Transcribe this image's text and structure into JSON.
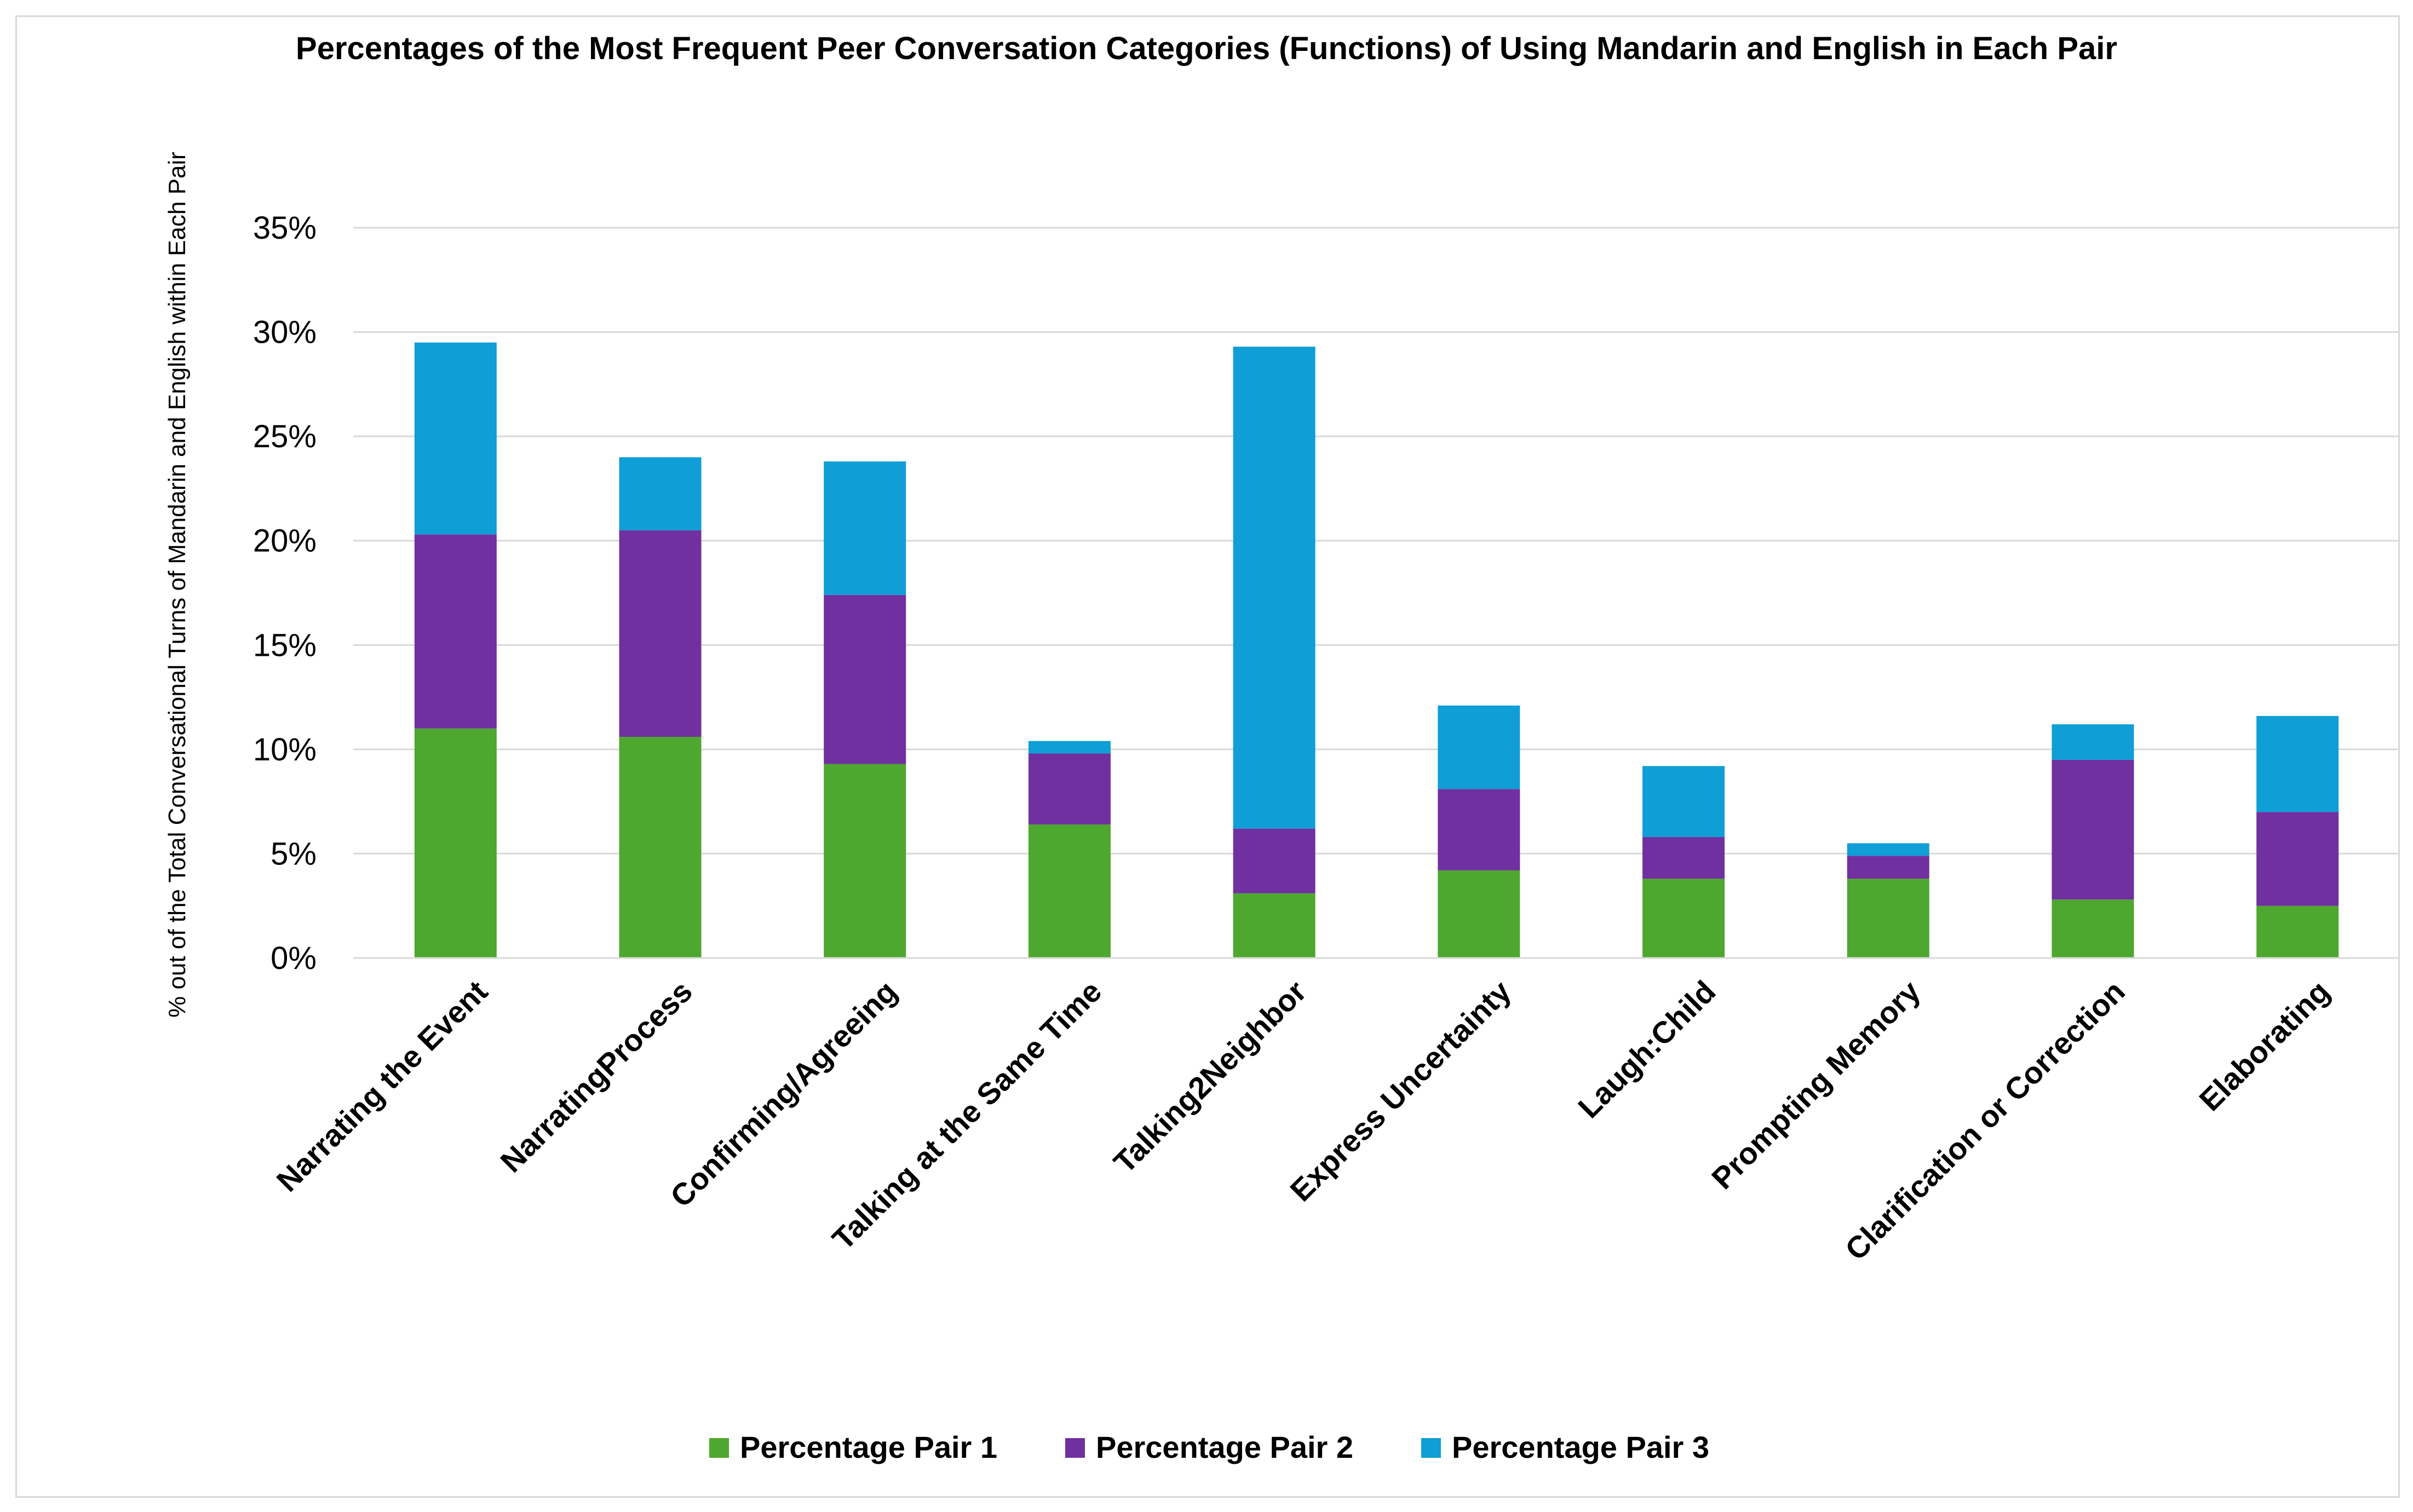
{
  "chart_data": {
    "type": "bar",
    "stacked": true,
    "title": "Percentages of the Most Frequent Peer Conversation Categories (Functions) of Using Mandarin and English in Each Pair",
    "xlabel": "",
    "ylabel": "% out of the Total Conversational Turns of Mandarin and English within Each Pair",
    "ylim": [
      0,
      0.35
    ],
    "yticks": [
      0,
      0.05,
      0.1,
      0.15,
      0.2,
      0.25,
      0.3,
      0.35
    ],
    "ytick_labels": [
      "0%",
      "5%",
      "10%",
      "15%",
      "20%",
      "25%",
      "30%",
      "35%"
    ],
    "grid": true,
    "legend_position": "bottom",
    "categories": [
      "Narrating the Event",
      "NarratingProcess",
      "Confirming/Agreeing",
      "Talking at the Same Time",
      "Talking2Neighbor",
      "Express Uncertainty",
      "Laugh:Child",
      "Prompting Memory",
      "Clarification or Correction",
      "Elaborating"
    ],
    "series": [
      {
        "name": "Percentage Pair 1",
        "color": "#4ea72e",
        "values": [
          0.11,
          0.106,
          0.093,
          0.064,
          0.031,
          0.042,
          0.038,
          0.038,
          0.028,
          0.025
        ]
      },
      {
        "name": "Percentage Pair 2",
        "color": "#7030a0",
        "values": [
          0.093,
          0.099,
          0.081,
          0.034,
          0.031,
          0.039,
          0.02,
          0.011,
          0.067,
          0.045
        ]
      },
      {
        "name": "Percentage Pair 3",
        "color": "#0f9ed5",
        "values": [
          0.092,
          0.035,
          0.064,
          0.006,
          0.231,
          0.04,
          0.034,
          0.006,
          0.017,
          0.046
        ]
      }
    ]
  }
}
